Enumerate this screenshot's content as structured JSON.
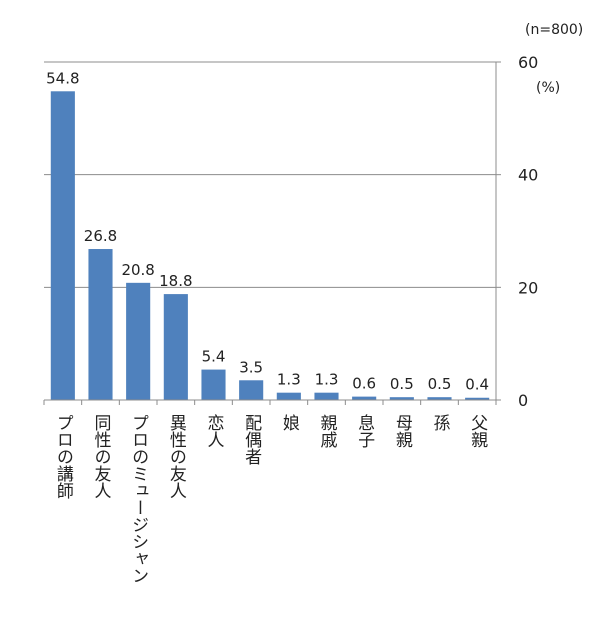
{
  "chart_data": {
    "type": "bar",
    "title": "",
    "xlabel": "",
    "ylabel": "",
    "sample_note": "(n=800)",
    "unit_label": "(%)",
    "categories": [
      "プロの講師",
      "同性の友人",
      "プロのミュージシャン",
      "異性の友人",
      "恋人",
      "配偶者",
      "娘",
      "親戚",
      "息子",
      "母親",
      "孫",
      "父親"
    ],
    "values": [
      54.8,
      26.8,
      20.8,
      18.8,
      5.4,
      3.5,
      1.3,
      1.3,
      0.6,
      0.5,
      0.5,
      0.4
    ],
    "value_labels": [
      "54.8",
      "26.8",
      "20.8",
      "18.8",
      "5.4",
      "3.5",
      "1.3",
      "1.3",
      "0.6",
      "0.5",
      "0.5",
      "0.4"
    ],
    "ylim": [
      0,
      60
    ],
    "yticks": [
      "0",
      "20",
      "40",
      "60"
    ],
    "y_axis_side": "right",
    "grid": true,
    "legend": "none",
    "bar_color": "#4f81bd"
  }
}
